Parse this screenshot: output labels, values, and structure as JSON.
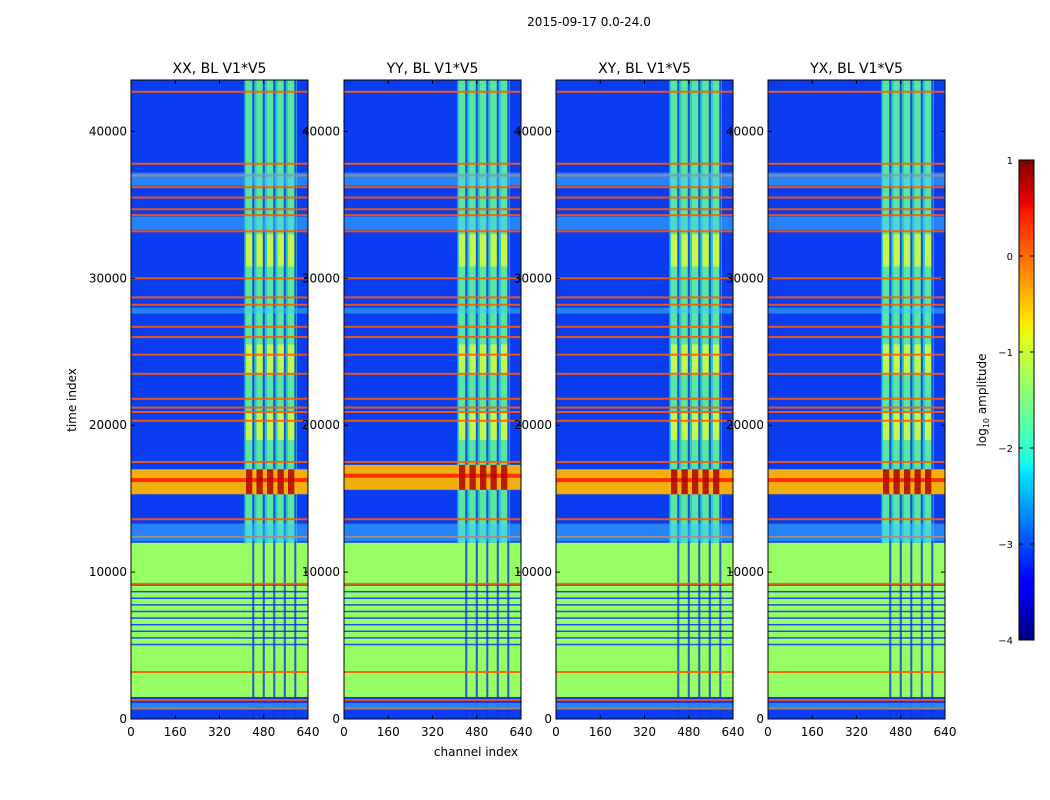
{
  "chart_data": {
    "type": "heatmap",
    "suptitle": "2015-09-17 0.0-24.0",
    "xlabel": "channel index",
    "ylabel": "time index",
    "xlim": [
      0,
      640
    ],
    "ylim": [
      0,
      43500
    ],
    "xticks": [
      0,
      160,
      320,
      480,
      640
    ],
    "yticks": [
      0,
      10000,
      20000,
      30000,
      40000
    ],
    "panels": [
      {
        "title": "XX, BL V1*V5",
        "strong_block": [
          15300,
          17000
        ]
      },
      {
        "title": "YY, BL V1*V5",
        "strong_block": [
          15600,
          17300
        ]
      },
      {
        "title": "XY, BL V1*V5",
        "strong_block": [
          15300,
          17000
        ]
      },
      {
        "title": "YX, BL V1*V5",
        "strong_block": [
          15300,
          17000
        ]
      }
    ],
    "colorbar": {
      "label": "log",
      "label_sub": "10",
      "label_rest": " amplitude",
      "range": [
        -4,
        1
      ],
      "ticks": [
        1,
        0,
        -1,
        -2,
        -3,
        -4
      ]
    },
    "features": {
      "signal_band_channels": [
        410,
        600
      ],
      "flagged_low_time": [
        1500,
        12000
      ],
      "rfi_lines": [
        700,
        1300,
        3200,
        9200,
        12400,
        13600,
        17500,
        20300,
        20900,
        21200,
        21800,
        23500,
        24800,
        26000,
        26700,
        28200,
        28700,
        30000,
        33200,
        34300,
        34700,
        35500,
        36200,
        37000,
        37800,
        42700
      ]
    }
  }
}
